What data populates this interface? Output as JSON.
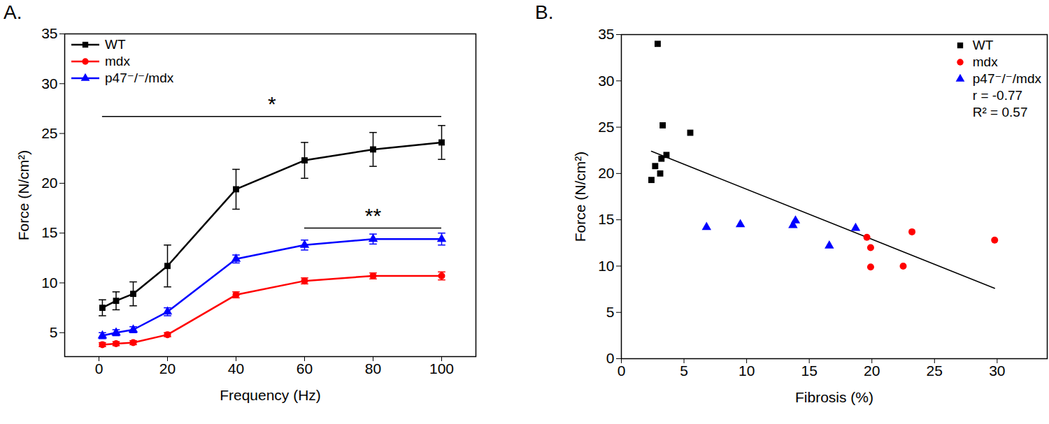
{
  "chart_data": [
    {
      "type": "line",
      "title": "A.",
      "x_label": "Frequency (Hz)",
      "y_label": "Force (N/cm²)",
      "x": [
        1,
        5,
        10,
        20,
        40,
        60,
        80,
        100
      ],
      "xlim": [
        -10,
        110
      ],
      "xticks": [
        0,
        20,
        40,
        60,
        80,
        100
      ],
      "ylim": [
        2.6,
        35
      ],
      "yticks": [
        5,
        10,
        15,
        20,
        25,
        30,
        35
      ],
      "legend": "top-left",
      "series": [
        {
          "name": "WT",
          "color": "#000000",
          "marker": "square",
          "values": [
            7.5,
            8.2,
            8.9,
            11.7,
            19.4,
            22.3,
            23.4,
            24.1
          ],
          "errors": [
            0.8,
            0.9,
            1.2,
            2.1,
            2.0,
            1.8,
            1.7,
            1.7
          ]
        },
        {
          "name": "mdx",
          "color": "#ff0000",
          "marker": "circle",
          "values": [
            3.8,
            3.9,
            4.0,
            4.8,
            8.8,
            10.2,
            10.7,
            10.7
          ],
          "errors": [
            0.2,
            0.2,
            0.2,
            0.2,
            0.3,
            0.3,
            0.3,
            0.4
          ]
        },
        {
          "name": "p47⁻/⁻/mdx",
          "color": "#0000ff",
          "marker": "triangle",
          "values": [
            4.7,
            5.0,
            5.3,
            7.1,
            12.4,
            13.8,
            14.4,
            14.4
          ],
          "errors": [
            0.3,
            0.3,
            0.3,
            0.4,
            0.4,
            0.5,
            0.5,
            0.6
          ]
        }
      ],
      "annotations": [
        {
          "text": "*",
          "x1": 1,
          "x2": 100,
          "y": 26.7
        },
        {
          "text": "**",
          "x1": 60,
          "x2": 100,
          "y": 15.5
        }
      ]
    },
    {
      "type": "scatter",
      "title": "B.",
      "x_label": "Fibrosis (%)",
      "y_label": "Force (N/cm²)",
      "xlim": [
        0,
        34
      ],
      "xticks": [
        0,
        5,
        10,
        15,
        20,
        25,
        30
      ],
      "ylim": [
        0,
        35
      ],
      "yticks": [
        0,
        5,
        10,
        15,
        20,
        25,
        30,
        35
      ],
      "legend": "top-right",
      "series": [
        {
          "name": "WT",
          "color": "#000000",
          "marker": "square",
          "x": [
            2.9,
            3.3,
            5.5,
            3.6,
            3.2,
            2.7,
            3.1,
            2.4
          ],
          "y": [
            34.0,
            25.2,
            24.4,
            22.0,
            21.6,
            20.8,
            20.0,
            19.3
          ]
        },
        {
          "name": "mdx",
          "color": "#ff0000",
          "marker": "circle",
          "x": [
            19.6,
            19.9,
            19.9,
            22.5,
            23.2,
            29.8
          ],
          "y": [
            13.1,
            12.0,
            9.9,
            10.0,
            13.7,
            12.8
          ]
        },
        {
          "name": "p47⁻/⁻/mdx",
          "color": "#0000ff",
          "marker": "triangle",
          "x": [
            6.8,
            9.5,
            13.7,
            13.9,
            16.6,
            18.7
          ],
          "y": [
            14.2,
            14.5,
            14.4,
            14.9,
            12.2,
            14.1
          ]
        }
      ],
      "fit": {
        "x": [
          2.4,
          29.8
        ],
        "y": [
          22.4,
          7.6
        ]
      },
      "annotations": [
        {
          "text": "r = -0.77"
        },
        {
          "text": "R² = 0.57"
        }
      ]
    }
  ]
}
